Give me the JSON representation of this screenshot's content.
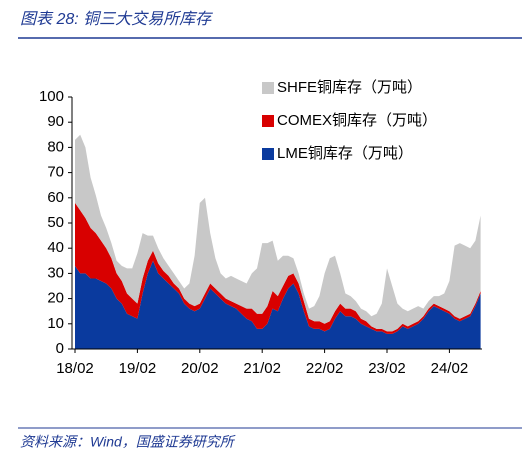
{
  "chart_data": {
    "type": "stacked_area",
    "title": "图表 28:  铜三大交易所库存",
    "source": "资料来源：Wind，国盛证券研究所",
    "categories": [
      "18/02",
      null,
      null,
      null,
      null,
      null,
      null,
      null,
      null,
      null,
      null,
      null,
      "19/02",
      null,
      null,
      null,
      null,
      null,
      null,
      null,
      null,
      null,
      null,
      null,
      "20/02",
      null,
      null,
      null,
      null,
      null,
      null,
      null,
      null,
      null,
      null,
      null,
      "21/02",
      null,
      null,
      null,
      null,
      null,
      null,
      null,
      null,
      null,
      null,
      null,
      "22/02",
      null,
      null,
      null,
      null,
      null,
      null,
      null,
      null,
      null,
      null,
      null,
      "23/02",
      null,
      null,
      null,
      null,
      null,
      null,
      null,
      null,
      null,
      null,
      null,
      "24/02",
      null,
      null,
      null,
      null,
      null,
      null
    ],
    "series": [
      {
        "name": "LME铜库存（万吨）",
        "color": "#0a3a9e",
        "values": [
          33,
          30,
          30,
          28,
          28,
          27,
          26,
          24,
          20,
          18,
          14,
          13,
          12,
          22,
          30,
          35,
          30,
          28,
          26,
          24,
          22,
          18,
          16,
          15,
          16,
          20,
          24,
          22,
          20,
          18,
          17,
          16,
          14,
          12,
          11,
          8,
          8,
          10,
          16,
          15,
          20,
          24,
          26,
          22,
          15,
          9,
          8,
          8,
          7,
          8,
          12,
          15,
          13,
          13,
          12,
          10,
          9,
          8,
          7,
          7,
          6,
          6,
          7,
          9,
          8,
          9,
          10,
          12,
          15,
          17,
          16,
          15,
          14,
          12,
          11,
          12,
          13,
          17,
          22
        ]
      },
      {
        "name": "COMEX铜库存（万吨）",
        "color": "#d80000",
        "values": [
          25,
          25,
          22,
          20,
          18,
          16,
          14,
          12,
          10,
          9,
          8,
          7,
          6,
          6,
          5,
          4,
          4,
          3,
          3,
          2,
          2,
          2,
          2,
          2,
          2,
          2,
          2,
          2,
          2,
          2,
          2,
          2,
          3,
          4,
          5,
          6,
          6,
          7,
          7,
          6,
          5,
          5,
          4,
          4,
          4,
          3,
          3,
          3,
          3,
          3,
          3,
          3,
          3,
          3,
          3,
          2,
          2,
          1,
          1,
          1,
          1,
          1,
          1,
          1,
          1,
          1,
          1,
          1,
          1,
          1,
          1,
          1,
          1,
          1,
          1,
          1,
          1,
          1,
          1
        ]
      },
      {
        "name": "SHFE铜库存（万吨）",
        "color": "#c8c8c8",
        "values": [
          25,
          30,
          28,
          20,
          15,
          10,
          8,
          6,
          5,
          6,
          10,
          12,
          20,
          18,
          10,
          6,
          6,
          5,
          4,
          4,
          3,
          4,
          8,
          20,
          40,
          38,
          20,
          12,
          8,
          8,
          10,
          10,
          10,
          10,
          14,
          18,
          28,
          25,
          20,
          14,
          12,
          8,
          6,
          4,
          3,
          4,
          6,
          10,
          20,
          25,
          22,
          12,
          6,
          5,
          4,
          4,
          4,
          4,
          6,
          10,
          25,
          18,
          10,
          6,
          6,
          6,
          6,
          3,
          3,
          3,
          4,
          6,
          12,
          28,
          30,
          28,
          26,
          25,
          30
        ]
      }
    ],
    "ylim": [
      0,
      100
    ],
    "yticks": [
      0,
      10,
      20,
      30,
      40,
      50,
      60,
      70,
      80,
      90,
      100
    ]
  }
}
